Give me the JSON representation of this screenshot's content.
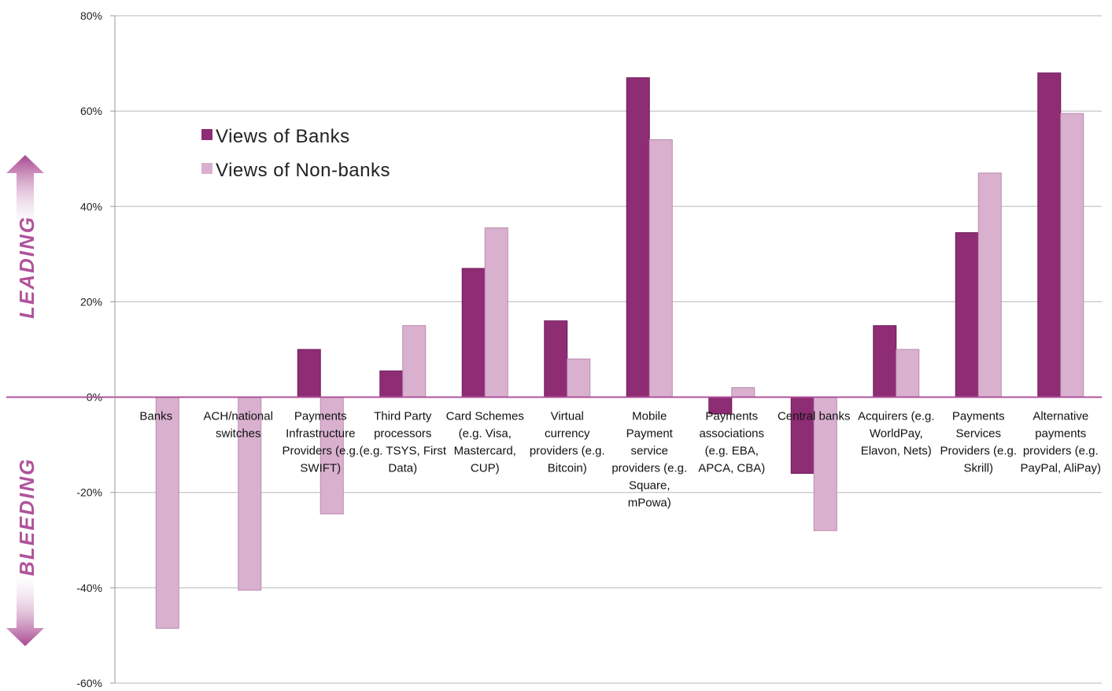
{
  "chart_data": {
    "type": "bar",
    "categories": [
      [
        "Banks"
      ],
      [
        "ACH/national",
        "switches"
      ],
      [
        "Payments",
        "Infrastructure",
        "Providers (e.g.",
        "SWIFT)"
      ],
      [
        "Third Party",
        "processors",
        "(e.g. TSYS, First",
        "Data)"
      ],
      [
        "Card Schemes",
        "(e.g. Visa,",
        "Mastercard,",
        "CUP)"
      ],
      [
        "Virtual",
        "currency",
        "providers (e.g.",
        "Bitcoin)"
      ],
      [
        "Mobile",
        "Payment",
        "service",
        "providers (e.g.",
        "Square,",
        "mPowa)"
      ],
      [
        "Payments",
        "associations",
        "(e.g. EBA,",
        "APCA, CBA)"
      ],
      [
        "Central banks"
      ],
      [
        "Acquirers (e.g.",
        "WorldPay,",
        "Elavon, Nets)"
      ],
      [
        "Payments",
        "Services",
        "Providers (e.g.",
        "Skrill)"
      ],
      [
        "Alternative",
        "payments",
        "providers (e.g.",
        "PayPal, AliPay)"
      ]
    ],
    "series": [
      {
        "name": "Views of Banks",
        "color": "#8e2c74",
        "values": [
          0,
          0,
          10,
          5.5,
          27,
          16,
          67,
          -3.5,
          -16,
          15,
          34.5,
          68
        ]
      },
      {
        "name": "Views of Non-banks",
        "color": "#d9b1cf",
        "values": [
          -48.5,
          -40.5,
          -24.5,
          15,
          35.5,
          8,
          54,
          2,
          -28,
          10,
          47,
          59.5
        ]
      }
    ],
    "ylim": [
      -60,
      80
    ],
    "yticks": [
      80,
      60,
      40,
      20,
      0,
      -20,
      -40,
      -60
    ],
    "ytick_labels": [
      "80%",
      "60%",
      "40%",
      "20%",
      "0%",
      "-20%",
      "-40%",
      "-60%"
    ],
    "grid": true,
    "legend_position": "top-left",
    "side_labels": {
      "top": "LEADING",
      "bottom": "BLEEDING"
    }
  }
}
